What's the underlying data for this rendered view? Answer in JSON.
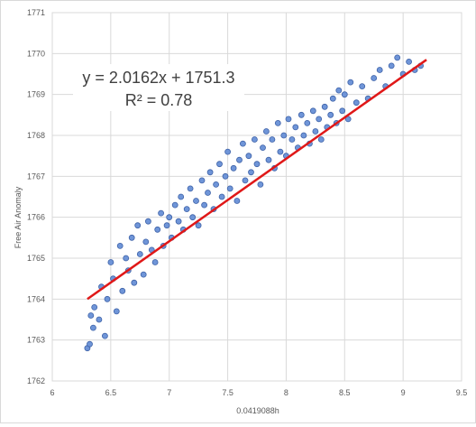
{
  "chart_data": {
    "type": "scatter",
    "xlabel": "0.0419088h",
    "ylabel": "Free Air Anomaly",
    "xlim": [
      6,
      9.5
    ],
    "ylim": [
      1762,
      1771
    ],
    "x_ticks": [
      "6",
      "6.5",
      "7",
      "7.5",
      "8",
      "8.5",
      "9",
      "9.5"
    ],
    "y_ticks": [
      "1762",
      "1763",
      "1764",
      "1765",
      "1766",
      "1767",
      "1768",
      "1769",
      "1770",
      "1771"
    ],
    "grid": true,
    "marker_color": "#6f95d8",
    "marker_edge": "#3f63a8",
    "trendline": {
      "slope": 2.0162,
      "intercept": 1751.3,
      "x_range": [
        6.3,
        9.2
      ],
      "color": "#e01818",
      "equation": "y = 2.0162x + 1751.3",
      "r_squared": "R² = 0.78"
    },
    "points": [
      [
        6.3,
        1762.8
      ],
      [
        6.32,
        1762.9
      ],
      [
        6.33,
        1763.6
      ],
      [
        6.35,
        1763.3
      ],
      [
        6.36,
        1763.8
      ],
      [
        6.4,
        1763.5
      ],
      [
        6.42,
        1764.3
      ],
      [
        6.45,
        1763.1
      ],
      [
        6.47,
        1764.0
      ],
      [
        6.5,
        1764.9
      ],
      [
        6.52,
        1764.5
      ],
      [
        6.55,
        1763.7
      ],
      [
        6.58,
        1765.3
      ],
      [
        6.6,
        1764.2
      ],
      [
        6.63,
        1765.0
      ],
      [
        6.65,
        1764.7
      ],
      [
        6.68,
        1765.5
      ],
      [
        6.7,
        1764.4
      ],
      [
        6.73,
        1765.8
      ],
      [
        6.75,
        1765.1
      ],
      [
        6.78,
        1764.6
      ],
      [
        6.8,
        1765.4
      ],
      [
        6.82,
        1765.9
      ],
      [
        6.85,
        1765.2
      ],
      [
        6.88,
        1764.9
      ],
      [
        6.9,
        1765.7
      ],
      [
        6.93,
        1766.1
      ],
      [
        6.95,
        1765.3
      ],
      [
        6.98,
        1765.8
      ],
      [
        7.0,
        1766.0
      ],
      [
        7.02,
        1765.5
      ],
      [
        7.05,
        1766.3
      ],
      [
        7.08,
        1765.9
      ],
      [
        7.1,
        1766.5
      ],
      [
        7.12,
        1765.7
      ],
      [
        7.15,
        1766.2
      ],
      [
        7.18,
        1766.7
      ],
      [
        7.2,
        1766.0
      ],
      [
        7.23,
        1766.4
      ],
      [
        7.25,
        1765.8
      ],
      [
        7.28,
        1766.9
      ],
      [
        7.3,
        1766.3
      ],
      [
        7.33,
        1766.6
      ],
      [
        7.35,
        1767.1
      ],
      [
        7.38,
        1766.2
      ],
      [
        7.4,
        1766.8
      ],
      [
        7.43,
        1767.3
      ],
      [
        7.45,
        1766.5
      ],
      [
        7.48,
        1767.0
      ],
      [
        7.5,
        1767.6
      ],
      [
        7.52,
        1766.7
      ],
      [
        7.55,
        1767.2
      ],
      [
        7.58,
        1766.4
      ],
      [
        7.6,
        1767.4
      ],
      [
        7.63,
        1767.8
      ],
      [
        7.65,
        1766.9
      ],
      [
        7.68,
        1767.5
      ],
      [
        7.7,
        1767.1
      ],
      [
        7.73,
        1767.9
      ],
      [
        7.75,
        1767.3
      ],
      [
        7.78,
        1766.8
      ],
      [
        7.8,
        1767.7
      ],
      [
        7.83,
        1768.1
      ],
      [
        7.85,
        1767.4
      ],
      [
        7.88,
        1767.9
      ],
      [
        7.9,
        1767.2
      ],
      [
        7.93,
        1768.3
      ],
      [
        7.95,
        1767.6
      ],
      [
        7.98,
        1768.0
      ],
      [
        8.0,
        1767.5
      ],
      [
        8.02,
        1768.4
      ],
      [
        8.05,
        1767.9
      ],
      [
        8.08,
        1768.2
      ],
      [
        8.1,
        1767.7
      ],
      [
        8.13,
        1768.5
      ],
      [
        8.15,
        1768.0
      ],
      [
        8.18,
        1768.3
      ],
      [
        8.2,
        1767.8
      ],
      [
        8.23,
        1768.6
      ],
      [
        8.25,
        1768.1
      ],
      [
        8.28,
        1768.4
      ],
      [
        8.3,
        1767.9
      ],
      [
        8.33,
        1768.7
      ],
      [
        8.35,
        1768.2
      ],
      [
        8.38,
        1768.5
      ],
      [
        8.4,
        1768.9
      ],
      [
        8.43,
        1768.3
      ],
      [
        8.45,
        1769.1
      ],
      [
        8.48,
        1768.6
      ],
      [
        8.5,
        1769.0
      ],
      [
        8.53,
        1768.4
      ],
      [
        8.55,
        1769.3
      ],
      [
        8.6,
        1768.8
      ],
      [
        8.65,
        1769.2
      ],
      [
        8.7,
        1768.9
      ],
      [
        8.75,
        1769.4
      ],
      [
        8.8,
        1769.6
      ],
      [
        8.85,
        1769.2
      ],
      [
        8.9,
        1769.7
      ],
      [
        8.95,
        1769.9
      ],
      [
        9.0,
        1769.5
      ],
      [
        9.05,
        1769.8
      ],
      [
        9.1,
        1769.6
      ],
      [
        9.15,
        1769.7
      ]
    ]
  }
}
